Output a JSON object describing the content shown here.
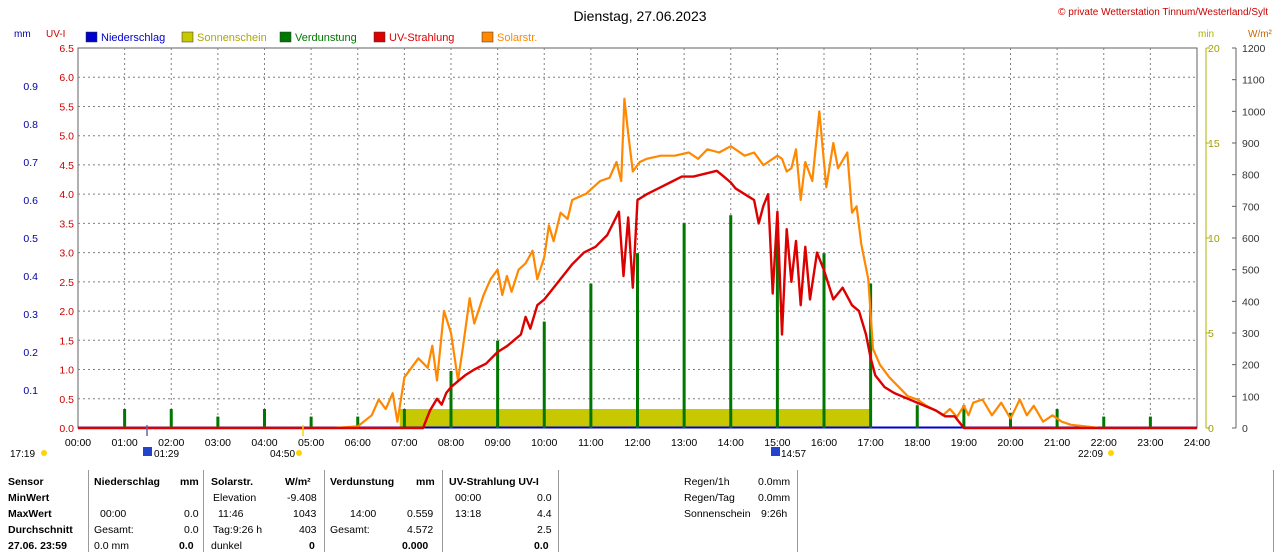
{
  "header": {
    "title": "Dienstag, 27.06.2023",
    "copyright": "© private Wetterstation Tinnum/Westerland/Sylt"
  },
  "axis_units": {
    "left_outer": "mm",
    "left_inner": "UV-I",
    "right_inner": "min",
    "right_outer": "W/m²"
  },
  "legend": [
    {
      "label": "Niederschlag",
      "color": "#0000cc"
    },
    {
      "label": "Sonnenschein",
      "color": "#c8c800"
    },
    {
      "label": "Verdunstung",
      "color": "#007700"
    },
    {
      "label": "UV-Strahlung",
      "color": "#dd0000"
    },
    {
      "label": "Solarstr.",
      "color": "#ff8800"
    }
  ],
  "colors": {
    "niederschlag": "#0000cc",
    "sonnenschein": "#c8c800",
    "verdunstung": "#007700",
    "uv": "#dd0000",
    "solar": "#ff8800",
    "grid": "#808080",
    "axis_olive": "#b0b000"
  },
  "sun_markers": {
    "dawn": "17:19",
    "sunrise": "01:29",
    "sunrise_label": "04:50",
    "sunset": "14:57",
    "dusk": "22:09"
  },
  "chart_data": {
    "type": "line",
    "title": "Dienstag, 27.06.2023",
    "x_ticks": [
      "00:00",
      "01:00",
      "02:00",
      "03:00",
      "04:00",
      "05:00",
      "06:00",
      "07:00",
      "08:00",
      "09:00",
      "10:00",
      "11:00",
      "12:00",
      "13:00",
      "14:00",
      "15:00",
      "16:00",
      "17:00",
      "18:00",
      "19:00",
      "20:00",
      "21:00",
      "22:00",
      "23:00",
      "24:00"
    ],
    "y_mm_ticks": [
      "0.1",
      "0.2",
      "0.3",
      "0.4",
      "0.5",
      "0.6",
      "0.7",
      "0.8",
      "0.9"
    ],
    "y_mm_range": [
      0,
      1.0
    ],
    "y_uv_ticks": [
      "0.0",
      "0.5",
      "1.0",
      "1.5",
      "2.0",
      "2.5",
      "3.0",
      "3.5",
      "4.0",
      "4.5",
      "5.0",
      "5.5",
      "6.0",
      "6.5"
    ],
    "y_uv_range": [
      0,
      6.5
    ],
    "y_min_ticks": [
      "0",
      "5",
      "10",
      "15",
      "20"
    ],
    "y_min_range": [
      0,
      20
    ],
    "y_wm2_ticks": [
      "0",
      "100",
      "200",
      "300",
      "400",
      "500",
      "600",
      "700",
      "800",
      "900",
      "1000",
      "1100",
      "1200"
    ],
    "y_wm2_range": [
      0,
      1200
    ],
    "grid": true,
    "series": [
      {
        "name": "Solarstr.",
        "unit": "W/m²",
        "axis": "right_outer",
        "x": [
          0,
          5.5,
          6.0,
          6.3,
          6.45,
          6.6,
          6.75,
          6.85,
          7.0,
          7.3,
          7.5,
          7.6,
          7.7,
          7.85,
          8.0,
          8.15,
          8.25,
          8.4,
          8.5,
          8.7,
          8.85,
          9.0,
          9.1,
          9.2,
          9.3,
          9.45,
          9.6,
          9.75,
          9.85,
          10.0,
          10.1,
          10.2,
          10.35,
          10.5,
          10.6,
          10.75,
          10.9,
          11.05,
          11.2,
          11.4,
          11.55,
          11.65,
          11.72,
          11.8,
          11.9,
          12.05,
          12.2,
          12.5,
          12.8,
          13.1,
          13.3,
          13.5,
          13.75,
          14.0,
          14.1,
          14.3,
          14.5,
          14.7,
          14.8,
          15.0,
          15.1,
          15.2,
          15.3,
          15.4,
          15.5,
          15.6,
          15.75,
          15.9,
          16.05,
          16.2,
          16.3,
          16.5,
          16.6,
          16.7,
          16.8,
          16.95,
          17.05,
          17.2,
          17.4,
          17.6,
          17.8,
          18.0,
          18.2,
          18.4,
          18.55,
          18.7,
          18.85,
          19.0,
          19.1,
          19.2,
          19.4,
          19.6,
          19.8,
          20.0,
          20.2,
          20.35,
          20.5,
          20.7,
          20.9,
          21.1,
          21.3,
          21.6,
          21.9,
          22.1,
          22.3,
          24
        ],
        "values": [
          0,
          0,
          5,
          40,
          90,
          60,
          110,
          20,
          160,
          220,
          190,
          260,
          150,
          370,
          300,
          150,
          250,
          410,
          330,
          420,
          470,
          500,
          420,
          480,
          430,
          500,
          520,
          560,
          470,
          540,
          640,
          590,
          680,
          660,
          720,
          730,
          740,
          760,
          780,
          790,
          840,
          780,
          1040,
          930,
          810,
          840,
          850,
          860,
          860,
          870,
          850,
          880,
          870,
          890,
          880,
          860,
          870,
          830,
          840,
          860,
          850,
          810,
          820,
          880,
          720,
          840,
          780,
          1000,
          760,
          900,
          820,
          870,
          680,
          700,
          580,
          470,
          250,
          200,
          160,
          130,
          100,
          90,
          70,
          55,
          40,
          60,
          35,
          70,
          40,
          80,
          90,
          40,
          80,
          30,
          90,
          40,
          70,
          20,
          40,
          20,
          10,
          5,
          0,
          0,
          0,
          0
        ]
      },
      {
        "name": "UV-Strahlung",
        "unit": "UV-I",
        "axis": "left_inner",
        "x": [
          0,
          7.4,
          7.55,
          7.7,
          7.8,
          7.9,
          8.0,
          8.15,
          8.3,
          8.5,
          8.75,
          9.0,
          9.2,
          9.35,
          9.5,
          9.6,
          9.7,
          9.85,
          10.0,
          10.2,
          10.4,
          10.6,
          10.85,
          11.1,
          11.35,
          11.6,
          11.7,
          11.8,
          11.9,
          12.0,
          12.2,
          12.45,
          12.7,
          12.95,
          13.2,
          13.45,
          13.7,
          13.85,
          14.0,
          14.1,
          14.3,
          14.5,
          14.6,
          14.7,
          14.8,
          14.9,
          15.0,
          15.1,
          15.2,
          15.3,
          15.4,
          15.5,
          15.6,
          15.7,
          15.85,
          16.0,
          16.2,
          16.4,
          16.6,
          16.75,
          16.9,
          17.0,
          17.1,
          17.3,
          17.5,
          17.8,
          18.1,
          18.4,
          18.6,
          18.8,
          19.0,
          24
        ],
        "values": [
          0,
          0,
          0.3,
          0.5,
          0.4,
          0.6,
          0.7,
          0.8,
          0.9,
          1.0,
          1.1,
          1.3,
          1.4,
          1.5,
          1.6,
          1.9,
          1.7,
          2.1,
          2.2,
          2.4,
          2.6,
          2.8,
          3.0,
          3.1,
          3.3,
          3.7,
          2.6,
          3.6,
          2.4,
          3.9,
          4.0,
          4.1,
          4.2,
          4.3,
          4.3,
          4.35,
          4.4,
          4.3,
          4.2,
          4.1,
          4.0,
          3.9,
          3.5,
          3.8,
          4.0,
          2.3,
          3.7,
          1.6,
          3.4,
          2.5,
          3.2,
          2.1,
          3.1,
          2.2,
          3.0,
          2.7,
          2.2,
          2.4,
          2.1,
          2.0,
          1.6,
          1.2,
          0.9,
          0.7,
          0.6,
          0.5,
          0.4,
          0.3,
          0.2,
          0.2,
          0,
          0
        ]
      },
      {
        "name": "Verdunstung",
        "unit": "mm",
        "axis": "left_outer",
        "x": [
          1,
          2,
          3,
          4,
          5,
          6,
          7,
          8,
          9,
          10,
          11,
          12,
          13,
          14,
          15,
          16,
          17,
          18,
          19,
          20,
          21,
          22,
          23
        ],
        "values": [
          0.05,
          0.05,
          0.03,
          0.05,
          0.03,
          0.03,
          0.05,
          0.15,
          0.23,
          0.28,
          0.38,
          0.46,
          0.54,
          0.56,
          0.5,
          0.46,
          0.38,
          0.06,
          0.06,
          0.04,
          0.05,
          0.03,
          0.03
        ]
      },
      {
        "name": "Sonnenschein",
        "unit": "min",
        "axis": "right_inner",
        "x": [
          6.9,
          17.0
        ],
        "values": [
          1,
          1
        ]
      },
      {
        "name": "Niederschlag",
        "unit": "mm",
        "axis": "left_outer",
        "x": [
          0,
          24
        ],
        "values": [
          0,
          0
        ]
      }
    ]
  },
  "table": {
    "rows": [
      [
        "Sensor",
        "Niederschlag",
        "mm",
        "Solarstr.",
        "W/m²",
        "Verdunstung",
        "mm",
        "UV-Strahlung UV-I",
        ""
      ],
      [
        "MinWert",
        "",
        "",
        "Elevation",
        "-9.408",
        "",
        "",
        "00:00",
        "0.0"
      ],
      [
        "MaxWert",
        "00:00",
        "0.0",
        "11:46",
        "1043",
        "14:00",
        "0.559",
        "13:18",
        "4.4"
      ],
      [
        "Durchschnitt",
        "Gesamt:",
        "0.0",
        "Tag:9:26 h",
        "403",
        "Gesamt:",
        "4.572",
        "",
        "2.5"
      ],
      [
        "27.06. 23:59",
        "0.0 mm",
        "0.0",
        "dunkel",
        "0",
        "",
        "0.000",
        "",
        "0.0"
      ]
    ],
    "extra": [
      {
        "label": "Regen/1h",
        "value": "0.0mm"
      },
      {
        "label": "Regen/Tag",
        "value": "0.0mm"
      },
      {
        "label": "Sonnenschein",
        "value": "9:26h"
      }
    ]
  }
}
